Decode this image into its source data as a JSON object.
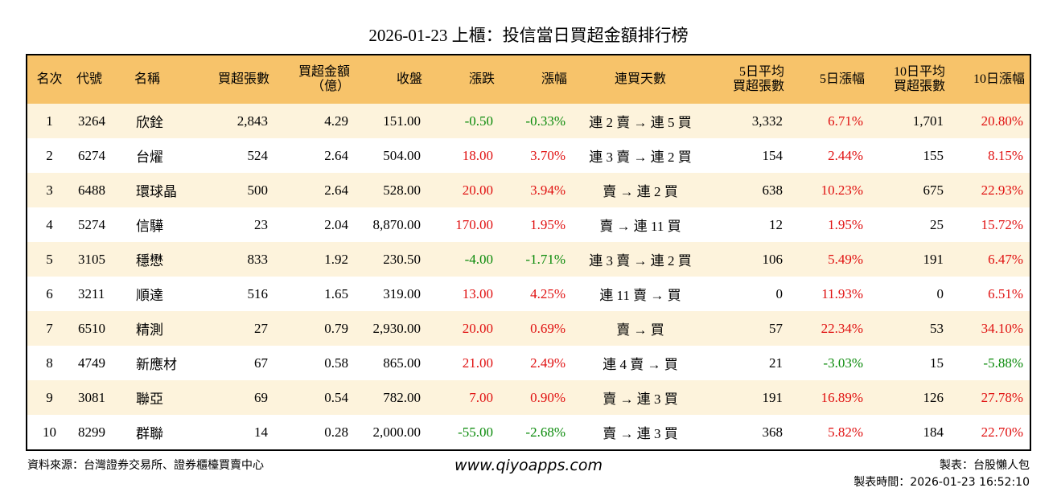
{
  "title": "2026-01-23 上櫃：投信當日買超金額排行榜",
  "table": {
    "headers": [
      [
        "名次"
      ],
      [
        "代號"
      ],
      [
        "名稱"
      ],
      [
        "買超張數"
      ],
      [
        "買超金額",
        "（億）"
      ],
      [
        "收盤"
      ],
      [
        "漲跌"
      ],
      [
        "漲幅"
      ],
      [
        "連買天數"
      ],
      [
        "5日平均",
        "買超張數"
      ],
      [
        "5日漲幅"
      ],
      [
        "10日平均",
        "買超張數"
      ],
      [
        "10日漲幅"
      ]
    ],
    "rows": [
      [
        "1",
        "3264",
        "欣銓",
        "2,843",
        "4.29",
        "151.00",
        "-0.50",
        "-0.33%",
        "連 2 賣 → 連 5 買",
        "3,332",
        "6.71%",
        "1,701",
        "20.80%"
      ],
      [
        "2",
        "6274",
        "台燿",
        "524",
        "2.64",
        "504.00",
        "18.00",
        "3.70%",
        "連 3 賣 → 連 2 買",
        "154",
        "2.44%",
        "155",
        "8.15%"
      ],
      [
        "3",
        "6488",
        "環球晶",
        "500",
        "2.64",
        "528.00",
        "20.00",
        "3.94%",
        "賣 → 連 2 買",
        "638",
        "10.23%",
        "675",
        "22.93%"
      ],
      [
        "4",
        "5274",
        "信驊",
        "23",
        "2.04",
        "8,870.00",
        "170.00",
        "1.95%",
        "賣 → 連 11 買",
        "12",
        "1.95%",
        "25",
        "15.72%"
      ],
      [
        "5",
        "3105",
        "穩懋",
        "833",
        "1.92",
        "230.50",
        "-4.00",
        "-1.71%",
        "連 3 賣 → 連 2 買",
        "106",
        "5.49%",
        "191",
        "6.47%"
      ],
      [
        "6",
        "3211",
        "順達",
        "516",
        "1.65",
        "319.00",
        "13.00",
        "4.25%",
        "連 11 賣 → 買",
        "0",
        "11.93%",
        "0",
        "6.51%"
      ],
      [
        "7",
        "6510",
        "精測",
        "27",
        "0.79",
        "2,930.00",
        "20.00",
        "0.69%",
        "賣 → 買",
        "57",
        "22.34%",
        "53",
        "34.10%"
      ],
      [
        "8",
        "4749",
        "新應材",
        "67",
        "0.58",
        "865.00",
        "21.00",
        "2.49%",
        "連 4 賣 → 買",
        "21",
        "-3.03%",
        "15",
        "-5.88%"
      ],
      [
        "9",
        "3081",
        "聯亞",
        "69",
        "0.54",
        "782.00",
        "7.00",
        "0.90%",
        "賣 → 連 3 買",
        "191",
        "16.89%",
        "126",
        "27.78%"
      ],
      [
        "10",
        "8299",
        "群聯",
        "14",
        "0.28",
        "2,000.00",
        "-55.00",
        "-2.68%",
        "賣 → 連 3 買",
        "368",
        "5.82%",
        "184",
        "22.70%"
      ]
    ]
  },
  "footer": {
    "source": "資料來源：台灣證券交易所、證券櫃檯買賣中心",
    "url": "www.qiyoapps.com",
    "maker": "製表：台股懶人包",
    "time": "製表時間：2026-01-23 16:52:10"
  }
}
